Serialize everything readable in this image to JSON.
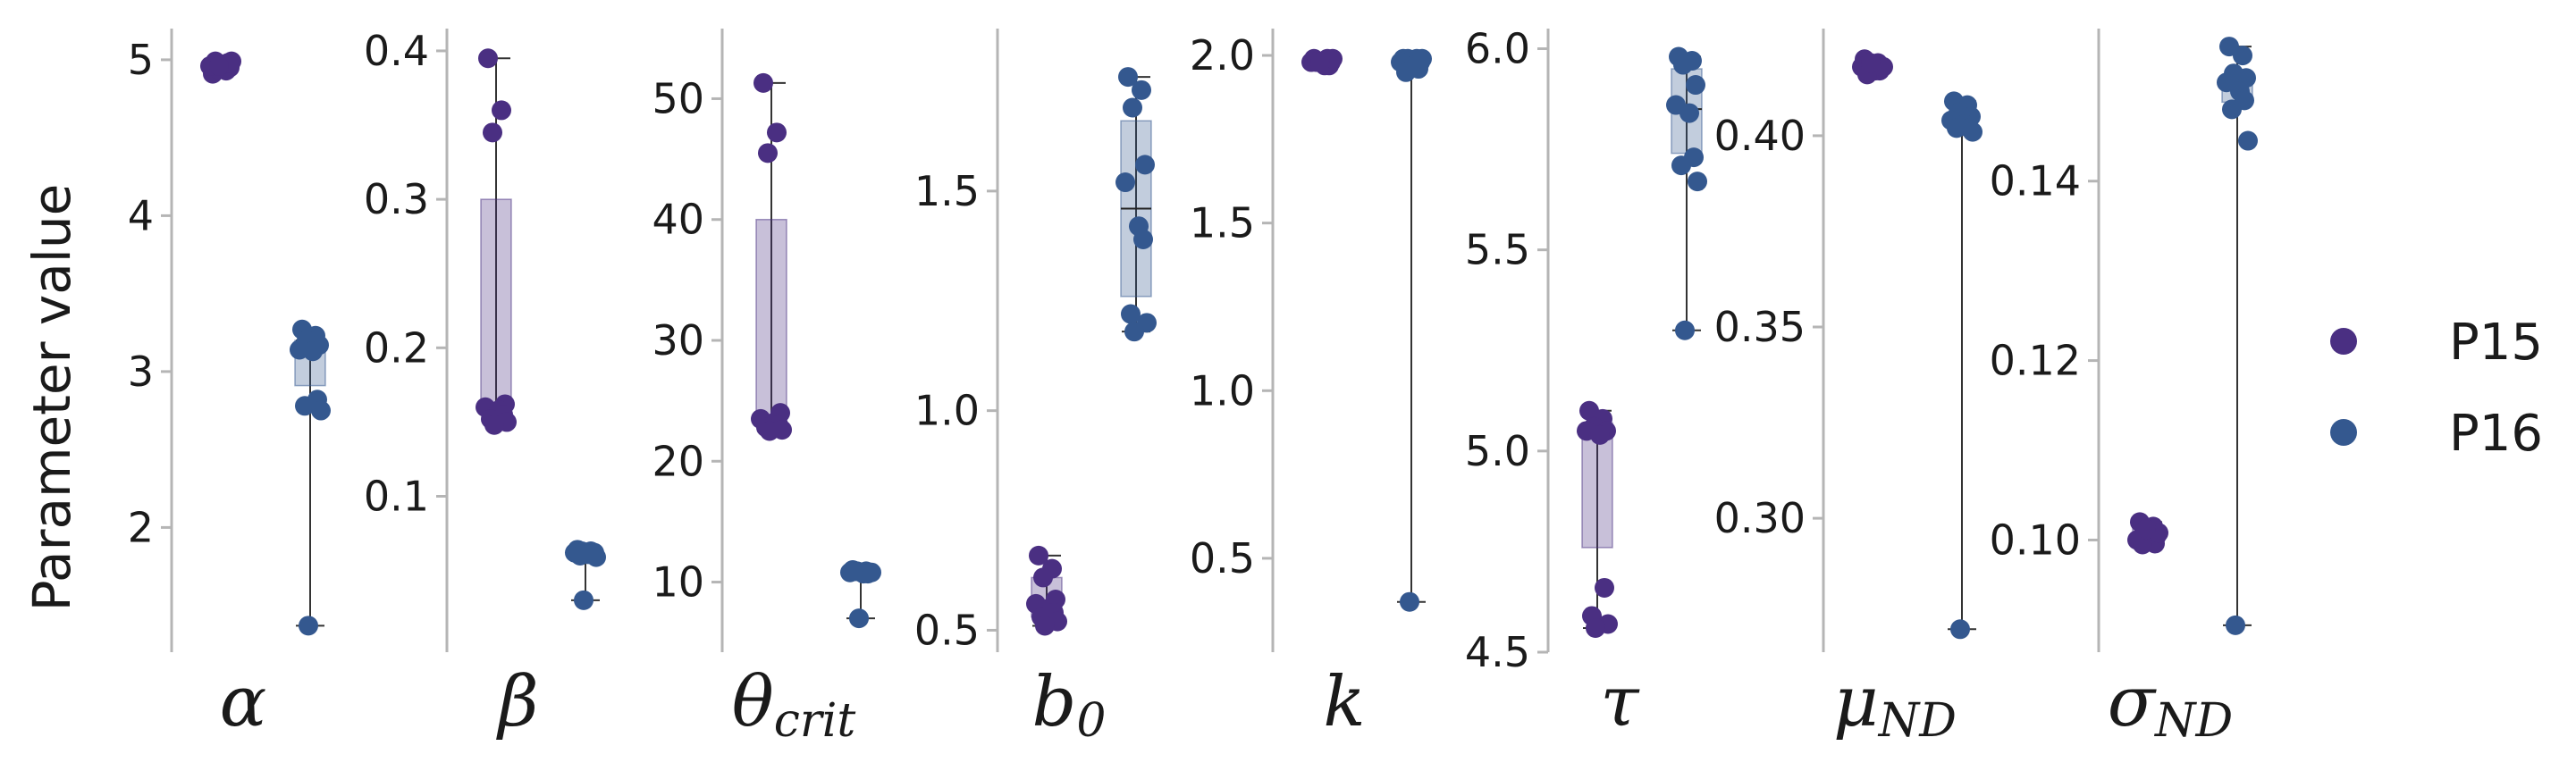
{
  "chart_data": {
    "type": "box-strip",
    "ylabel": "Parameter value",
    "series": [
      {
        "name": "P15",
        "color": "#4a2f82"
      },
      {
        "name": "P16",
        "color": "#34588f"
      }
    ],
    "legend": {
      "placement": "right",
      "entries": [
        "P15",
        "P16"
      ]
    },
    "panels": [
      {
        "label": "α",
        "sub": "",
        "ylim": [
          1.2,
          5.2
        ],
        "yticks": [
          2,
          3,
          4,
          5
        ],
        "ytick_labels": [
          "2",
          "3",
          "4",
          "5"
        ],
        "groups": [
          {
            "series": "P15",
            "box": {
              "q1": 4.95,
              "median": 4.97,
              "q3": 4.99,
              "whisker_low": 4.95,
              "whisker_high": 4.99
            },
            "points": [
              4.91,
              4.93,
              4.94,
              4.95,
              4.96,
              4.97,
              4.98,
              4.99,
              4.99,
              4.96
            ]
          },
          {
            "series": "P16",
            "box": {
              "q1": 2.91,
              "median": 3.16,
              "q3": 3.2,
              "whisker_low": 1.37,
              "whisker_high": 3.2
            },
            "points": [
              3.27,
              3.23,
              3.2,
              3.17,
              3.14,
              3.13,
              2.82,
              2.78,
              2.75,
              1.37
            ]
          }
        ]
      },
      {
        "label": "β",
        "sub": "",
        "ylim": [
          -0.005,
          0.415
        ],
        "yticks": [
          0.1,
          0.2,
          0.3,
          0.4
        ],
        "ytick_labels": [
          "0.1",
          "0.2",
          "0.3",
          "0.4"
        ],
        "groups": [
          {
            "series": "P15",
            "box": {
              "q1": 0.155,
              "median": 0.157,
              "q3": 0.3,
              "whisker_low": 0.15,
              "whisker_high": 0.395
            },
            "points": [
              0.395,
              0.36,
              0.345,
              0.162,
              0.16,
              0.158,
              0.155,
              0.152,
              0.15,
              0.148
            ]
          },
          {
            "series": "P16",
            "box": {
              "q1": 0.061,
              "median": 0.063,
              "q3": 0.064,
              "whisker_low": 0.03,
              "whisker_high": 0.064
            },
            "points": [
              0.064,
              0.063,
              0.063,
              0.062,
              0.062,
              0.061,
              0.061,
              0.06,
              0.059,
              0.03
            ]
          }
        ]
      },
      {
        "label": "θ",
        "sub": "crit",
        "ylim": [
          4.2,
          55.8
        ],
        "yticks": [
          10,
          20,
          30,
          40,
          50
        ],
        "ytick_labels": [
          "10",
          "20",
          "30",
          "40",
          "50"
        ],
        "groups": [
          {
            "series": "P15",
            "box": {
              "q1": 23.0,
              "median": 23.5,
              "q3": 40.0,
              "whisker_low": 22.5,
              "whisker_high": 51.3
            },
            "points": [
              51.3,
              47.2,
              45.5,
              24.0,
              23.5,
              23.2,
              23.0,
              22.8,
              22.6,
              22.5
            ]
          },
          {
            "series": "P16",
            "box": {
              "q1": 10.8,
              "median": 10.9,
              "q3": 11.0,
              "whisker_low": 7.0,
              "whisker_high": 11.0
            },
            "points": [
              11.0,
              10.9,
              10.9,
              10.8,
              10.8,
              10.7,
              10.7,
              10.9,
              10.8,
              7.0
            ]
          }
        ]
      },
      {
        "label": "b",
        "sub": "0",
        "ylim": [
          0.45,
          1.87
        ],
        "yticks": [
          0.5,
          1.0,
          1.5
        ],
        "ytick_labels": [
          "0.5",
          "1.0",
          "1.5"
        ],
        "groups": [
          {
            "series": "P15",
            "box": {
              "q1": 0.53,
              "median": 0.55,
              "q3": 0.62,
              "whisker_low": 0.51,
              "whisker_high": 0.67
            },
            "points": [
              0.67,
              0.64,
              0.62,
              0.57,
              0.56,
              0.55,
              0.54,
              0.53,
              0.52,
              0.51
            ]
          },
          {
            "series": "P16",
            "box": {
              "q1": 1.26,
              "median": 1.46,
              "q3": 1.66,
              "whisker_low": 1.18,
              "whisker_high": 1.76
            },
            "points": [
              1.76,
              1.73,
              1.69,
              1.56,
              1.52,
              1.42,
              1.39,
              1.22,
              1.2,
              1.18
            ]
          }
        ]
      },
      {
        "label": "k",
        "sub": "",
        "ylim": [
          0.22,
          2.08
        ],
        "yticks": [
          0.5,
          1.0,
          1.5,
          2.0
        ],
        "ytick_labels": [
          "0.5",
          "1.0",
          "1.5",
          "2.0"
        ],
        "groups": [
          {
            "series": "P15",
            "box": {
              "q1": 1.97,
              "median": 1.98,
              "q3": 1.99,
              "whisker_low": 1.97,
              "whisker_high": 1.99
            },
            "points": [
              1.99,
              1.99,
              1.98,
              1.98,
              1.98,
              1.97,
              1.97,
              1.98,
              1.99,
              1.98
            ]
          },
          {
            "series": "P16",
            "box": {
              "q1": 1.98,
              "median": 1.985,
              "q3": 1.99,
              "whisker_low": 0.37,
              "whisker_high": 1.99
            },
            "points": [
              1.99,
              1.99,
              1.99,
              1.98,
              1.98,
              1.97,
              1.96,
              1.95,
              1.99,
              0.37
            ]
          }
        ]
      },
      {
        "label": "τ",
        "sub": "",
        "ylim": [
          4.5,
          6.05
        ],
        "yticks": [
          4.5,
          5.0,
          5.5,
          6.0
        ],
        "ytick_labels": [
          "4.5",
          "5.0",
          "5.5",
          "6.0"
        ],
        "groups": [
          {
            "series": "P15",
            "box": {
              "q1": 4.76,
              "median": 5.05,
              "q3": 5.07,
              "whisker_low": 4.56,
              "whisker_high": 5.1
            },
            "points": [
              5.1,
              5.08,
              5.06,
              5.05,
              5.05,
              5.04,
              4.66,
              4.59,
              4.57,
              4.56
            ]
          },
          {
            "series": "P16",
            "box": {
              "q1": 5.74,
              "median": 5.85,
              "q3": 5.95,
              "whisker_low": 5.3,
              "whisker_high": 5.98
            },
            "points": [
              5.98,
              5.97,
              5.96,
              5.91,
              5.86,
              5.84,
              5.73,
              5.71,
              5.67,
              5.3
            ]
          }
        ]
      },
      {
        "label": "μ",
        "sub": "ND",
        "ylim": [
          0.265,
          0.428
        ],
        "yticks": [
          0.3,
          0.35,
          0.4
        ],
        "ytick_labels": [
          "0.30",
          "0.35",
          "0.40"
        ],
        "groups": [
          {
            "series": "P15",
            "box": {
              "q1": 0.416,
              "median": 0.418,
              "q3": 0.419,
              "whisker_low": 0.416,
              "whisker_high": 0.42
            },
            "points": [
              0.42,
              0.419,
              0.419,
              0.418,
              0.418,
              0.417,
              0.417,
              0.416,
              0.418,
              0.419
            ]
          },
          {
            "series": "P16",
            "box": {
              "q1": 0.4025,
              "median": 0.404,
              "q3": 0.405,
              "whisker_low": 0.271,
              "whisker_high": 0.409
            },
            "points": [
              0.409,
              0.408,
              0.406,
              0.405,
              0.404,
              0.403,
              0.402,
              0.402,
              0.401,
              0.271
            ]
          }
        ]
      },
      {
        "label": "σ",
        "sub": "ND",
        "ylim": [
          0.0875,
          0.157
        ],
        "yticks": [
          0.1,
          0.12,
          0.14
        ],
        "ytick_labels": [
          "0.10",
          "0.12",
          "0.14"
        ],
        "groups": [
          {
            "series": "P15",
            "box": {
              "q1": 0.0995,
              "median": 0.1005,
              "q3": 0.1015,
              "whisker_low": 0.0995,
              "whisker_high": 0.102
            },
            "points": [
              0.102,
              0.1015,
              0.101,
              0.1005,
              0.1,
              0.0998,
              0.0996,
              0.0995,
              0.1008,
              0.1012
            ]
          },
          {
            "series": "P16",
            "box": {
              "q1": 0.1488,
              "median": 0.151,
              "q3": 0.1518,
              "whisker_low": 0.0905,
              "whisker_high": 0.155
            },
            "points": [
              0.155,
              0.154,
              0.152,
              0.1515,
              0.151,
              0.15,
              0.149,
              0.148,
              0.1445,
              0.0905
            ]
          }
        ]
      }
    ]
  }
}
